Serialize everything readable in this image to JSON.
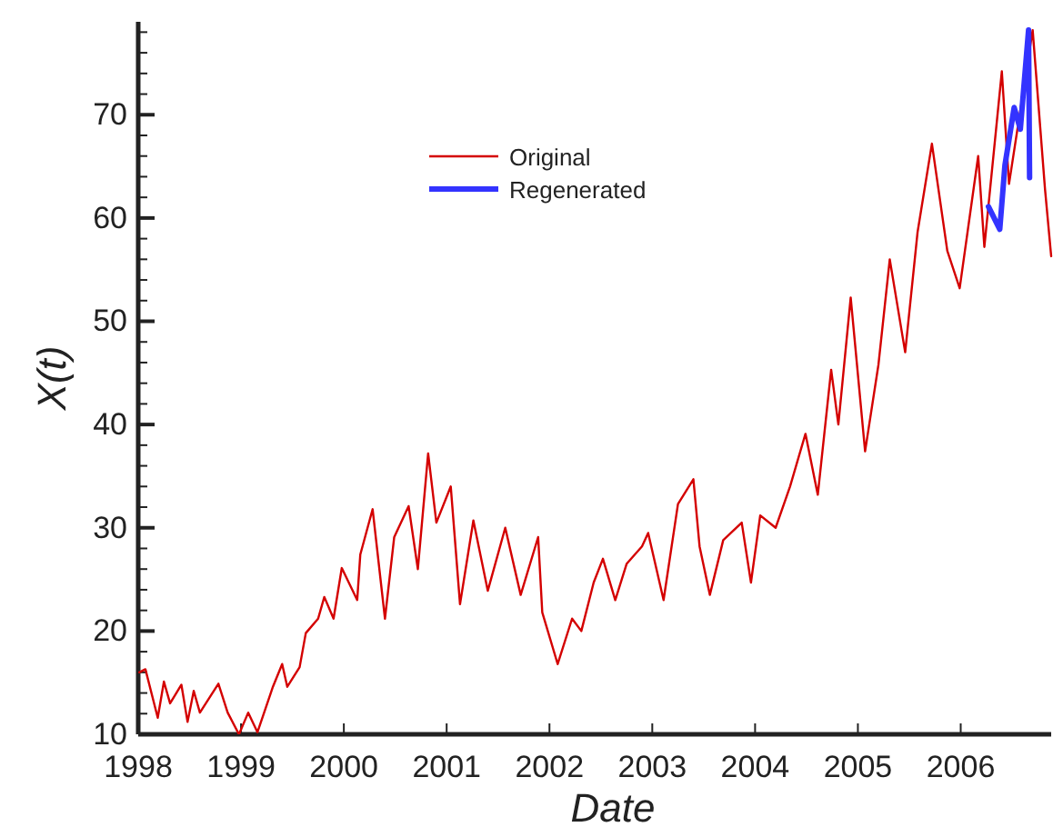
{
  "chart_data": {
    "type": "line",
    "xlabel": "Date",
    "ylabel": "X(t)",
    "xlim": [
      1998,
      2006.88
    ],
    "xticks": [
      1998,
      1999,
      2000,
      2001,
      2002,
      2003,
      2004,
      2005,
      2006
    ],
    "ylim": [
      10,
      79
    ],
    "yticks": [
      10,
      {
        "value": 12,
        "label": null
      },
      {
        "value": 14,
        "label": null
      },
      {
        "value": 16,
        "label": null
      },
      {
        "value": 18,
        "label": null
      },
      20,
      {
        "value": 22,
        "label": null
      },
      {
        "value": 24,
        "label": null
      },
      {
        "value": 26,
        "label": null
      },
      {
        "value": 28,
        "label": null
      },
      30,
      {
        "value": 32,
        "label": null
      },
      {
        "value": 34,
        "label": null
      },
      {
        "value": 36,
        "label": null
      },
      {
        "value": 38,
        "label": null
      },
      40,
      {
        "value": 42,
        "label": null
      },
      {
        "value": 44,
        "label": null
      },
      {
        "value": 46,
        "label": null
      },
      {
        "value": 48,
        "label": null
      },
      50,
      {
        "value": 52,
        "label": null
      },
      {
        "value": 54,
        "label": null
      },
      {
        "value": 56,
        "label": null
      },
      {
        "value": 58,
        "label": null
      },
      60,
      {
        "value": 62,
        "label": null
      },
      {
        "value": 64,
        "label": null
      },
      {
        "value": 66,
        "label": null
      },
      {
        "value": 68,
        "label": null
      },
      70,
      {
        "value": 72,
        "label": null
      },
      {
        "value": 74,
        "label": null
      },
      {
        "value": 76,
        "label": null
      },
      {
        "value": 78,
        "label": null
      }
    ],
    "grid": false,
    "legend": "top left",
    "marker": "none",
    "line_style": "solid",
    "series": [
      {
        "name": "Original",
        "color": "#d40000",
        "x": [
          1998.01,
          1998.07,
          1998.19,
          1998.25,
          1998.31,
          1998.42,
          1998.48,
          1998.54,
          1998.6,
          1998.78,
          1998.87,
          1998.98,
          1999.07,
          1999.16,
          1999.31,
          1999.4,
          1999.45,
          1999.57,
          1999.63,
          1999.75,
          1999.81,
          1999.9,
          1999.98,
          2000.13,
          2000.16,
          2000.28,
          2000.4,
          2000.49,
          2000.63,
          2000.72,
          2000.82,
          2000.9,
          2001.04,
          2001.13,
          2001.26,
          2001.4,
          2001.57,
          2001.72,
          2001.89,
          2001.93,
          2002.08,
          2002.22,
          2002.31,
          2002.43,
          2002.52,
          2002.64,
          2002.75,
          2002.9,
          2002.96,
          2003.11,
          2003.25,
          2003.4,
          2003.46,
          2003.56,
          2003.69,
          2003.87,
          2003.96,
          2004.05,
          2004.2,
          2004.34,
          2004.49,
          2004.61,
          2004.74,
          2004.81,
          2004.93,
          2005.07,
          2005.2,
          2005.31,
          2005.46,
          2005.58,
          2005.72,
          2005.87,
          2005.99,
          2006.17,
          2006.23,
          2006.4,
          2006.47,
          2006.7,
          2006.82,
          2006.88
        ],
        "values": [
          16,
          16.3,
          11.6,
          15.1,
          13,
          14.8,
          11.2,
          14.2,
          12.1,
          14.9,
          12.1,
          10,
          12.1,
          10.2,
          14.6,
          16.8,
          14.6,
          16.5,
          19.8,
          21.2,
          23.3,
          21.2,
          26.1,
          23,
          27.4,
          31.8,
          21.2,
          29.1,
          32.1,
          26,
          37.2,
          30.5,
          34,
          22.6,
          30.7,
          23.9,
          30,
          23.5,
          29.1,
          21.8,
          16.8,
          21.2,
          20,
          24.7,
          27,
          23,
          26.5,
          28.2,
          29.5,
          23,
          32.3,
          34.7,
          28.2,
          23.5,
          28.8,
          30.5,
          24.7,
          31.2,
          30,
          34,
          39.1,
          33.2,
          45.3,
          40,
          52.3,
          37.4,
          45.8,
          56,
          47,
          58.6,
          67.2,
          56.8,
          53.2,
          66,
          57.2,
          74.2,
          63.3,
          78.2,
          62.8,
          56.3
        ]
      },
      {
        "name": "Regenerated",
        "color": "#3333ff",
        "x": [
          2006.27,
          2006.38,
          2006.43,
          2006.52,
          2006.58,
          2006.66,
          2006.67
        ],
        "values": [
          61.1,
          58.9,
          65.1,
          70.7,
          68.6,
          78.2,
          63.9
        ]
      }
    ]
  }
}
